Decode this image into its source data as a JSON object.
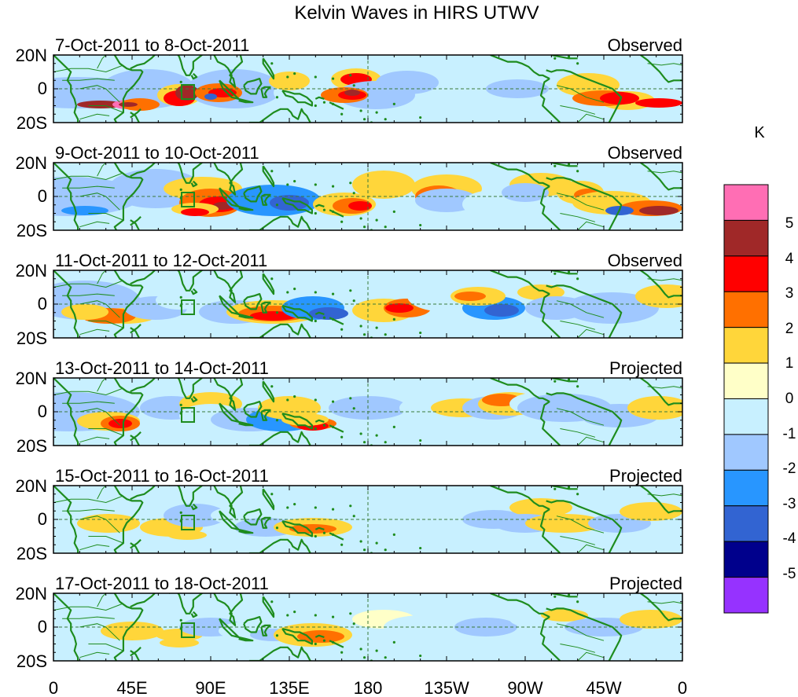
{
  "title": "Kelvin Waves in HIRS UTWV",
  "lat_labels": [
    "20N",
    "0",
    "20S"
  ],
  "lon_labels": [
    "0",
    "45E",
    "90E",
    "135E",
    "180",
    "135W",
    "90W",
    "45W",
    "0"
  ],
  "panels": [
    {
      "date": "7-Oct-2011 to 8-Oct-2011",
      "status": "Observed"
    },
    {
      "date": "9-Oct-2011 to 10-Oct-2011",
      "status": "Observed"
    },
    {
      "date": "11-Oct-2011 to 12-Oct-2011",
      "status": "Observed"
    },
    {
      "date": "13-Oct-2011 to 14-Oct-2011",
      "status": "Projected"
    },
    {
      "date": "15-Oct-2011 to 16-Oct-2011",
      "status": "Projected"
    },
    {
      "date": "17-Oct-2011 to 18-Oct-2011",
      "status": "Projected"
    }
  ],
  "colorbar": {
    "unit": "K",
    "labels": [
      "5",
      "4",
      "3",
      "2",
      "1",
      "0",
      "-1",
      "-2",
      "-3",
      "-4",
      "-5"
    ],
    "colors": [
      "#ff6eb4",
      "#a02828",
      "#ff0000",
      "#ff7000",
      "#ffd63a",
      "#ffffc8",
      "#c8f0ff",
      "#a0c8ff",
      "#2896ff",
      "#3264d2",
      "#00008c",
      "#9632ff"
    ]
  },
  "colors": {
    "coastline": "#1e8c1e",
    "equator_line": "#3a7a3a",
    "frame": "#000000"
  }
}
